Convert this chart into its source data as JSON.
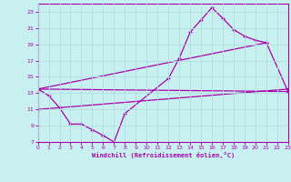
{
  "xlabel": "Windchill (Refroidissement éolien,°C)",
  "xlim": [
    0,
    23
  ],
  "ylim": [
    7,
    24
  ],
  "xticks": [
    0,
    1,
    2,
    3,
    4,
    5,
    6,
    7,
    8,
    9,
    10,
    11,
    12,
    13,
    14,
    15,
    16,
    17,
    18,
    19,
    20,
    21,
    22,
    23
  ],
  "yticks": [
    7,
    9,
    11,
    13,
    15,
    17,
    19,
    21,
    23
  ],
  "bg_color": "#c8f0f0",
  "line_color": "#aa00aa",
  "grid_color": "#b0dede",
  "series": [
    {
      "x": [
        0,
        1,
        2,
        3,
        4,
        5,
        6,
        7,
        8,
        12,
        13,
        14,
        15,
        16,
        17,
        18,
        19,
        20,
        21,
        23
      ],
      "y": [
        13.5,
        12.7,
        11.2,
        9.2,
        9.2,
        8.5,
        7.8,
        7.0,
        10.5,
        14.8,
        17.3,
        20.5,
        22.0,
        23.5,
        22.2,
        20.8,
        20.0,
        19.5,
        19.2,
        13.2
      ]
    },
    {
      "x": [
        0,
        23
      ],
      "y": [
        13.5,
        13.2
      ]
    },
    {
      "x": [
        0,
        21
      ],
      "y": [
        13.5,
        19.2
      ]
    },
    {
      "x": [
        0,
        23
      ],
      "y": [
        11.0,
        13.5
      ]
    }
  ]
}
